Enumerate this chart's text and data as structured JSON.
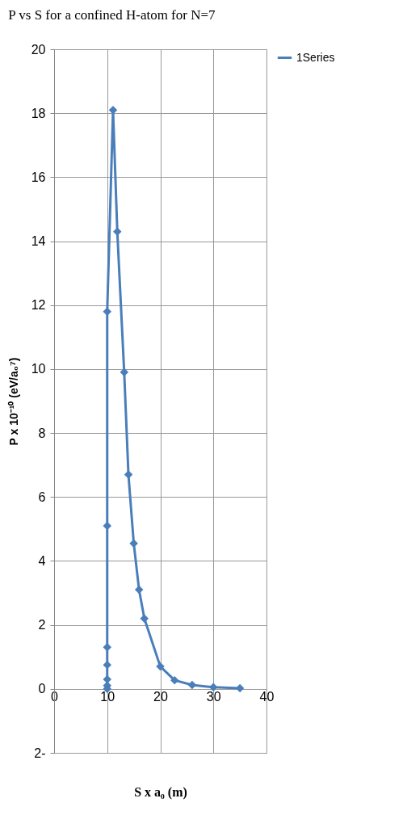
{
  "chart_data": {
    "type": "line",
    "title": "P vs S for a confined H-atom for N=7",
    "xlabel": "S x a₀ (m)",
    "ylabel": "P x 10⁻¹⁰ (eV/a₀⁷)",
    "x": [
      10,
      10,
      10,
      10,
      10,
      10,
      10,
      11.1,
      11.9,
      13.2,
      14,
      15,
      16,
      17,
      20,
      22.7,
      26,
      30,
      35
    ],
    "series": [
      {
        "name": "1Series",
        "color": "#4a7ebb",
        "values": [
          0,
          0.1,
          0.3,
          0.75,
          1.3,
          5.1,
          11.8,
          18.1,
          14.3,
          9.9,
          6.7,
          4.55,
          3.1,
          2.2,
          0.7,
          0.27,
          0.12,
          0.05,
          0.02
        ]
      }
    ],
    "xlim": [
      0,
      40
    ],
    "xticks": [
      0,
      10,
      20,
      30,
      40
    ],
    "ylim": [
      -2,
      20
    ],
    "yticks": [
      {
        "value": -2,
        "label": "2-"
      },
      0,
      2,
      4,
      6,
      8,
      10,
      12,
      14,
      16,
      18,
      20
    ],
    "grid": true,
    "legend": "right",
    "marker": "diamond",
    "line_style": "solid"
  }
}
